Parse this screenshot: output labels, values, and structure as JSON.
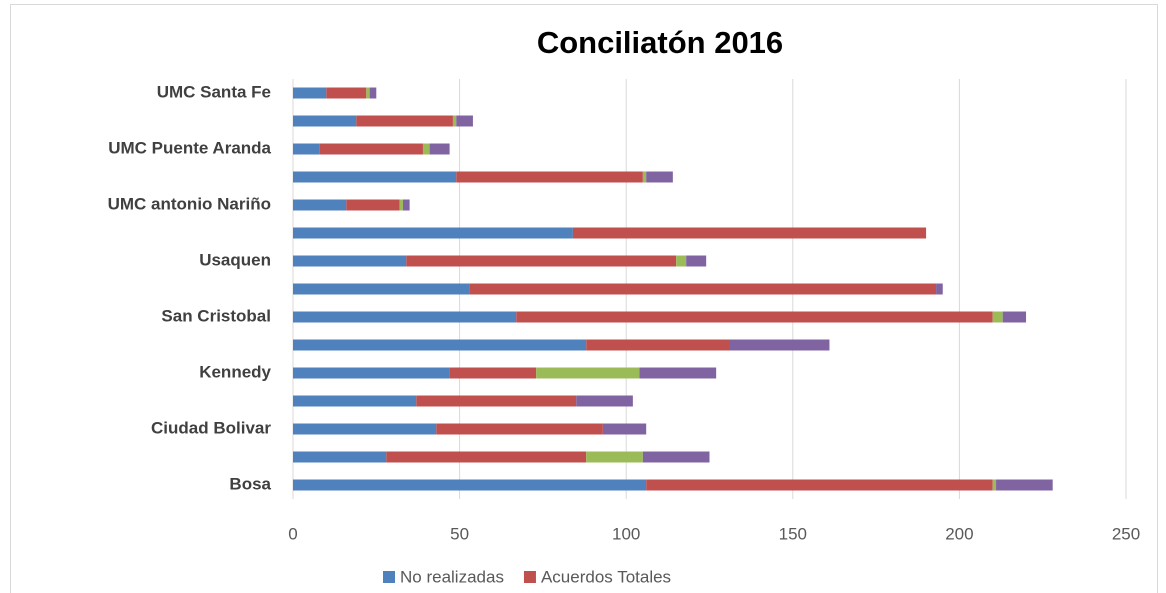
{
  "chart_data": {
    "type": "stacked-barh",
    "title": "Conciliatón 2016",
    "categories": [
      "Bosa",
      null,
      "Ciudad Bolivar",
      null,
      "Kennedy",
      null,
      "San Cristobal",
      null,
      "Usaquen",
      null,
      "UMC antonio Nariño",
      null,
      "UMC Puente Aranda",
      null,
      "UMC Santa Fe"
    ],
    "series": [
      {
        "name": "No realizadas",
        "color": "#4f81bd",
        "values": [
          106,
          28,
          43,
          37,
          47,
          88,
          67,
          53,
          34,
          84,
          16,
          49,
          8,
          19,
          10
        ]
      },
      {
        "name": "Acuerdos Totales",
        "color": "#c0504d",
        "values": [
          104,
          60,
          50,
          48,
          26,
          43,
          143,
          140,
          81,
          106,
          16,
          56,
          31,
          29,
          12
        ]
      },
      {
        "color": "#9bbb59",
        "values": [
          1,
          17,
          0,
          0,
          31,
          0,
          3,
          0,
          3,
          0,
          1,
          1,
          2,
          1,
          1
        ]
      },
      {
        "color": "#8064a2",
        "values": [
          17,
          20,
          13,
          17,
          23,
          30,
          7,
          2,
          6,
          0,
          2,
          8,
          6,
          5,
          2
        ]
      }
    ],
    "xlim": [
      0,
      250
    ],
    "xticks": [
      0,
      50,
      100,
      150,
      200,
      250
    ],
    "grid": true
  }
}
